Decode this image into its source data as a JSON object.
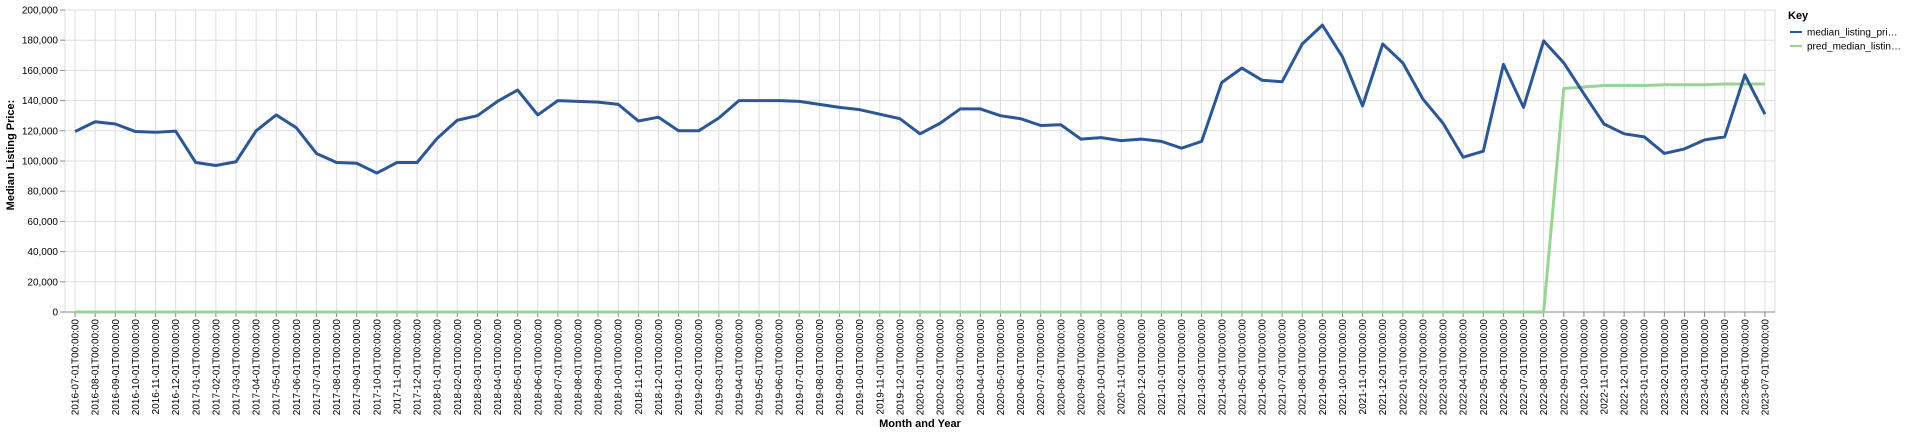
{
  "chart_data": {
    "type": "line",
    "xlabel": "Month and Year",
    "ylabel": "Median Listing Price:",
    "ylim": [
      0,
      200000
    ],
    "y_ticks": [
      "0",
      "20,000",
      "40,000",
      "60,000",
      "80,000",
      "100,000",
      "120,000",
      "140,000",
      "160,000",
      "180,000",
      "200,000"
    ],
    "grid": true,
    "legend": {
      "title": "Key",
      "placement": "top-right"
    },
    "x": [
      "2016-07-01T00:00:00",
      "2016-08-01T00:00:00",
      "2016-09-01T00:00:00",
      "2016-10-01T00:00:00",
      "2016-11-01T00:00:00",
      "2016-12-01T00:00:00",
      "2017-01-01T00:00:00",
      "2017-02-01T00:00:00",
      "2017-03-01T00:00:00",
      "2017-04-01T00:00:00",
      "2017-05-01T00:00:00",
      "2017-06-01T00:00:00",
      "2017-07-01T00:00:00",
      "2017-08-01T00:00:00",
      "2017-09-01T00:00:00",
      "2017-10-01T00:00:00",
      "2017-11-01T00:00:00",
      "2017-12-01T00:00:00",
      "2018-01-01T00:00:00",
      "2018-02-01T00:00:00",
      "2018-03-01T00:00:00",
      "2018-04-01T00:00:00",
      "2018-05-01T00:00:00",
      "2018-06-01T00:00:00",
      "2018-07-01T00:00:00",
      "2018-08-01T00:00:00",
      "2018-09-01T00:00:00",
      "2018-10-01T00:00:00",
      "2018-11-01T00:00:00",
      "2018-12-01T00:00:00",
      "2019-01-01T00:00:00",
      "2019-02-01T00:00:00",
      "2019-03-01T00:00:00",
      "2019-04-01T00:00:00",
      "2019-05-01T00:00:00",
      "2019-06-01T00:00:00",
      "2019-07-01T00:00:00",
      "2019-08-01T00:00:00",
      "2019-09-01T00:00:00",
      "2019-10-01T00:00:00",
      "2019-11-01T00:00:00",
      "2019-12-01T00:00:00",
      "2020-01-01T00:00:00",
      "2020-02-01T00:00:00",
      "2020-03-01T00:00:00",
      "2020-04-01T00:00:00",
      "2020-05-01T00:00:00",
      "2020-06-01T00:00:00",
      "2020-07-01T00:00:00",
      "2020-08-01T00:00:00",
      "2020-09-01T00:00:00",
      "2020-10-01T00:00:00",
      "2020-11-01T00:00:00",
      "2020-12-01T00:00:00",
      "2021-01-01T00:00:00",
      "2021-02-01T00:00:00",
      "2021-03-01T00:00:00",
      "2021-04-01T00:00:00",
      "2021-05-01T00:00:00",
      "2021-06-01T00:00:00",
      "2021-07-01T00:00:00",
      "2021-08-01T00:00:00",
      "2021-09-01T00:00:00",
      "2021-10-01T00:00:00",
      "2021-11-01T00:00:00",
      "2021-12-01T00:00:00",
      "2022-01-01T00:00:00",
      "2022-02-01T00:00:00",
      "2022-03-01T00:00:00",
      "2022-04-01T00:00:00",
      "2022-05-01T00:00:00",
      "2022-06-01T00:00:00",
      "2022-07-01T00:00:00",
      "2022-08-01T00:00:00",
      "2022-09-01T00:00:00",
      "2022-10-01T00:00:00",
      "2022-11-01T00:00:00",
      "2022-12-01T00:00:00",
      "2023-01-01T00:00:00",
      "2023-02-01T00:00:00",
      "2023-03-01T00:00:00",
      "2023-04-01T00:00:00",
      "2023-05-01T00:00:00",
      "2023-06-01T00:00:00",
      "2023-07-01T00:00:00"
    ],
    "x_tick_labels": [
      "2016-07-01T00:00:00",
      "2016-08-01T00:00:00",
      "2016-09-01T00:00:00",
      "2016-10-01T00:00:00",
      "2016-11-01T00:00:00",
      "2016-12-01T00:00:00",
      "2017-01-01T00:00:00",
      "2017-02-01T00:00:00",
      "2017-03-01T00:00:00",
      "2017-04-01T00:00:00",
      "2017-05-01T00:00:00",
      "2017-06-01T00:00:00",
      "2017-07-01T00:00:00",
      "2017-08-01T00:00:00",
      "2017-09-01T00:00:00",
      "2017-10-01T00:00:00",
      "2017-11-01T00:00:00",
      "2017-12-01T00:00:00",
      "2018-01-01T00:00:00",
      "2018-02-01T00:00:00",
      "2018-03-01T00:00:00",
      "2018-04-01T00:00:00",
      "2018-05-01T00:00:00",
      "2018-06-01T00:00:00",
      "2018-07-01T00:00:00",
      "2018-08-01T00:00:00",
      "2018-09-01T00:00:00",
      "2018-10-01T00:00:00",
      "2018-11-01T00:00:00",
      "2018-12-01T00:00:00",
      "2019-01-01T00:00:00",
      "2019-02-01T00:00:00",
      "2019-03-01T00:00:00",
      "2019-04-01T00:00:00",
      "2019-05-01T00:00:00",
      "2019-06-01T00:00:00",
      "2019-07-01T00:00:00",
      "2019-08-01T00:00:00",
      "2019-09-01T00:00:00",
      "2019-10-01T00:00:00",
      "2019-11-01T00:00:00",
      "2019-12-01T00:00:00",
      "2020-01-01T00:00:00",
      "2020-02-01T00:00:00",
      "2020-03-01T00:00:00",
      "2020-04-01T00:00:00",
      "2020-05-01T00:00:00",
      "2020-06-01T00:00:00",
      "2020-07-01T00:00:00",
      "2020-08-01T00:00:00",
      "2020-09-01T00:00:00",
      "2020-10-01T00:00:00",
      "2020-11-01T00:00:00",
      "2020-12-01T00:00:00",
      "2021-01-01T00:00:00",
      "2021-02-01T00:00:00",
      "2021-03-01T00:00:00",
      "2021-04-01T00:00:00",
      "2021-05-01T00:00:00",
      "2021-06-01T00:00:00",
      "2021-07-01T00:00:00",
      "2021-08-01T00:00:00",
      "2021-09-01T00:00:00",
      "2021-10-01T00:00:00",
      "2021-11-01T00:00:00",
      "2021-12-01T00:00:00",
      "2022-01-01T00:00:00",
      "2022-02-01T00:00:00",
      "2022-03-01T00:00:00",
      "2022-04-01T00:00:00",
      "2022-05-01T00:00:00",
      "2022-06-01T00:00:00",
      "2022-07-01T00:00:00",
      "2022-08-01T00:00:00",
      "2022-09-01T00:00:00",
      "2022-10-01T00:00:00",
      "2022-11-01T00:00:00",
      "2022-12-01T00:00:00",
      "2023-01-01T00:00:00",
      "2023-02-01T00:00:00",
      "2023-03-01T00:00:00",
      "2023-04-01T00:00:00",
      "2023-05-01T00:00:00",
      "2023-06-01T00:00:00",
      "2023-07-01T00:00:00"
    ],
    "series": [
      {
        "name": "median_listing_pri…",
        "color": "#2b5797",
        "values": [
          119500,
          126000,
          124500,
          119500,
          119000,
          119800,
          99000,
          97000,
          99500,
          120000,
          130500,
          122000,
          105000,
          99000,
          98500,
          92000,
          99000,
          99000,
          115000,
          127000,
          130000,
          139500,
          147000,
          130500,
          140000,
          139500,
          139000,
          137500,
          126500,
          129000,
          120000,
          120000,
          128500,
          140000,
          140000,
          140000,
          139500,
          137500,
          135500,
          134000,
          131000,
          128000,
          118000,
          125000,
          134500,
          134500,
          130000,
          128000,
          123500,
          124000,
          114500,
          115500,
          113500,
          114500,
          113000,
          108500,
          113000,
          152000,
          161500,
          153500,
          152500,
          177500,
          190000,
          169000,
          136500,
          177500,
          165000,
          141000,
          125000,
          102500,
          106500,
          164000,
          135500,
          179500,
          165000,
          144500,
          124500,
          118000,
          116000,
          105000,
          108000,
          114000,
          116000,
          157000,
          131000
        ]
      },
      {
        "name": "pred_median_listin…",
        "color": "#98d594",
        "values": [
          0,
          0,
          0,
          0,
          0,
          0,
          0,
          0,
          0,
          0,
          0,
          0,
          0,
          0,
          0,
          0,
          0,
          0,
          0,
          0,
          0,
          0,
          0,
          0,
          0,
          0,
          0,
          0,
          0,
          0,
          0,
          0,
          0,
          0,
          0,
          0,
          0,
          0,
          0,
          0,
          0,
          0,
          0,
          0,
          0,
          0,
          0,
          0,
          0,
          0,
          0,
          0,
          0,
          0,
          0,
          0,
          0,
          0,
          0,
          0,
          0,
          0,
          0,
          0,
          0,
          0,
          0,
          0,
          0,
          0,
          0,
          0,
          0,
          0,
          148000,
          149000,
          150000,
          150000,
          150000,
          150500,
          150500,
          150500,
          151000,
          151000,
          151000
        ]
      }
    ]
  }
}
